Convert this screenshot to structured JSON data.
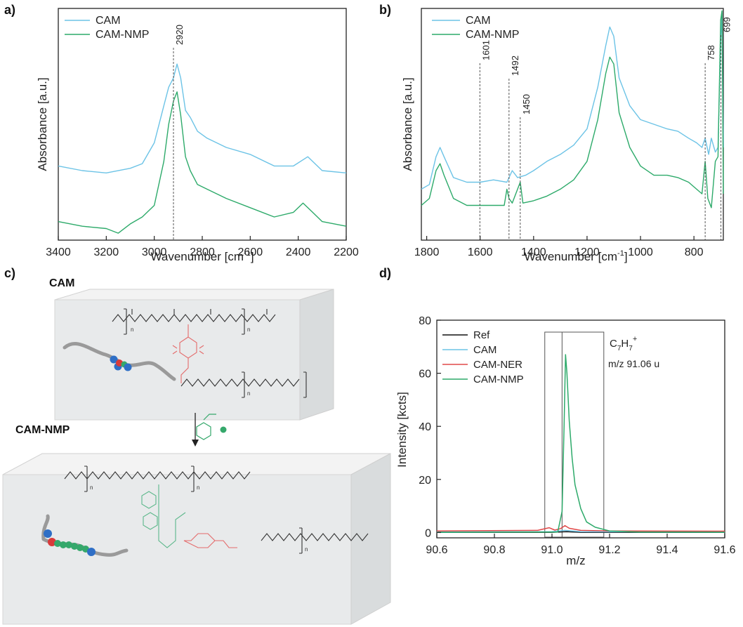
{
  "chart_data": [
    {
      "panel": "a)",
      "type": "line",
      "xlabel": "Wavenumber [cm",
      "xlabel_sup": "-1",
      "xlabel_end": "]",
      "ylabel": "Absorbance [a.u.]",
      "xlim": [
        3400,
        2200
      ],
      "x_ticks": [
        "3400",
        "3200",
        "3000",
        "2800",
        "2600",
        "2400",
        "2200"
      ],
      "annotations": [
        {
          "x": 2920,
          "label": "2920"
        }
      ],
      "series": [
        {
          "name": "CAM",
          "color": "#6cc3e6",
          "points": [
            [
              3400,
              0.32
            ],
            [
              3300,
              0.3
            ],
            [
              3200,
              0.29
            ],
            [
              3100,
              0.31
            ],
            [
              3050,
              0.33
            ],
            [
              3000,
              0.42
            ],
            [
              2960,
              0.58
            ],
            [
              2940,
              0.66
            ],
            [
              2920,
              0.7
            ],
            [
              2905,
              0.76
            ],
            [
              2890,
              0.7
            ],
            [
              2870,
              0.56
            ],
            [
              2850,
              0.53
            ],
            [
              2820,
              0.47
            ],
            [
              2780,
              0.44
            ],
            [
              2700,
              0.4
            ],
            [
              2600,
              0.37
            ],
            [
              2500,
              0.32
            ],
            [
              2420,
              0.32
            ],
            [
              2360,
              0.36
            ],
            [
              2300,
              0.3
            ],
            [
              2200,
              0.29
            ]
          ]
        },
        {
          "name": "CAM-NMP",
          "color": "#2daa6a",
          "points": [
            [
              3400,
              0.08
            ],
            [
              3300,
              0.06
            ],
            [
              3200,
              0.05
            ],
            [
              3150,
              0.03
            ],
            [
              3100,
              0.07
            ],
            [
              3050,
              0.1
            ],
            [
              3000,
              0.15
            ],
            [
              2960,
              0.34
            ],
            [
              2940,
              0.5
            ],
            [
              2920,
              0.6
            ],
            [
              2905,
              0.64
            ],
            [
              2890,
              0.54
            ],
            [
              2870,
              0.36
            ],
            [
              2850,
              0.3
            ],
            [
              2820,
              0.24
            ],
            [
              2780,
              0.22
            ],
            [
              2700,
              0.18
            ],
            [
              2600,
              0.14
            ],
            [
              2500,
              0.1
            ],
            [
              2420,
              0.12
            ],
            [
              2380,
              0.16
            ],
            [
              2340,
              0.12
            ],
            [
              2300,
              0.08
            ],
            [
              2200,
              0.06
            ]
          ]
        }
      ]
    },
    {
      "panel": "b)",
      "type": "line",
      "xlabel": "Wavenumber [cm",
      "xlabel_sup": "-1",
      "xlabel_end": "]",
      "ylabel": "Absorbance [a.u.]",
      "xlim": [
        1820,
        690
      ],
      "x_ticks": [
        "1800",
        "1600",
        "1400",
        "1200",
        "1000",
        "800"
      ],
      "annotations": [
        {
          "x": 1601,
          "label": "1601"
        },
        {
          "x": 1492,
          "label": "1492"
        },
        {
          "x": 1450,
          "label": "1450"
        },
        {
          "x": 758,
          "label": "758"
        },
        {
          "x": 699,
          "label": "699"
        }
      ],
      "series": [
        {
          "name": "CAM",
          "color": "#6cc3e6",
          "points": [
            [
              1820,
              0.22
            ],
            [
              1790,
              0.24
            ],
            [
              1765,
              0.36
            ],
            [
              1750,
              0.4
            ],
            [
              1735,
              0.36
            ],
            [
              1700,
              0.27
            ],
            [
              1650,
              0.25
            ],
            [
              1600,
              0.25
            ],
            [
              1550,
              0.26
            ],
            [
              1500,
              0.25
            ],
            [
              1480,
              0.3
            ],
            [
              1460,
              0.27
            ],
            [
              1430,
              0.28
            ],
            [
              1400,
              0.3
            ],
            [
              1350,
              0.34
            ],
            [
              1300,
              0.37
            ],
            [
              1250,
              0.41
            ],
            [
              1200,
              0.48
            ],
            [
              1160,
              0.66
            ],
            [
              1130,
              0.84
            ],
            [
              1115,
              0.92
            ],
            [
              1100,
              0.88
            ],
            [
              1080,
              0.7
            ],
            [
              1040,
              0.58
            ],
            [
              1000,
              0.52
            ],
            [
              950,
              0.5
            ],
            [
              900,
              0.48
            ],
            [
              860,
              0.47
            ],
            [
              820,
              0.44
            ],
            [
              790,
              0.42
            ],
            [
              770,
              0.4
            ],
            [
              758,
              0.44
            ],
            [
              745,
              0.37
            ],
            [
              735,
              0.44
            ],
            [
              720,
              0.38
            ],
            [
              710,
              0.4
            ],
            [
              700,
              0.86
            ],
            [
              695,
              0.98
            ],
            [
              690,
              0.4
            ]
          ]
        },
        {
          "name": "CAM-NMP",
          "color": "#2daa6a",
          "points": [
            [
              1820,
              0.15
            ],
            [
              1790,
              0.18
            ],
            [
              1765,
              0.3
            ],
            [
              1750,
              0.33
            ],
            [
              1735,
              0.28
            ],
            [
              1700,
              0.18
            ],
            [
              1650,
              0.15
            ],
            [
              1600,
              0.15
            ],
            [
              1550,
              0.15
            ],
            [
              1510,
              0.15
            ],
            [
              1500,
              0.22
            ],
            [
              1492,
              0.18
            ],
            [
              1480,
              0.16
            ],
            [
              1460,
              0.22
            ],
            [
              1450,
              0.25
            ],
            [
              1440,
              0.16
            ],
            [
              1400,
              0.17
            ],
            [
              1350,
              0.19
            ],
            [
              1300,
              0.22
            ],
            [
              1250,
              0.26
            ],
            [
              1200,
              0.34
            ],
            [
              1160,
              0.52
            ],
            [
              1130,
              0.72
            ],
            [
              1115,
              0.79
            ],
            [
              1100,
              0.76
            ],
            [
              1080,
              0.55
            ],
            [
              1040,
              0.4
            ],
            [
              1000,
              0.32
            ],
            [
              950,
              0.28
            ],
            [
              900,
              0.28
            ],
            [
              860,
              0.27
            ],
            [
              820,
              0.25
            ],
            [
              790,
              0.22
            ],
            [
              770,
              0.2
            ],
            [
              758,
              0.34
            ],
            [
              748,
              0.18
            ],
            [
              735,
              0.14
            ],
            [
              720,
              0.34
            ],
            [
              710,
              0.36
            ],
            [
              700,
              0.95
            ],
            [
              695,
              0.99
            ],
            [
              690,
              0.2
            ]
          ]
        }
      ]
    },
    {
      "panel": "d)",
      "type": "line",
      "xlabel": "m/z",
      "ylabel": "Intensity [kcts]",
      "xlim": [
        90.6,
        91.6
      ],
      "ylim": [
        -2,
        80
      ],
      "x_ticks": [
        "90.6",
        "90.8",
        "91.0",
        "91.2",
        "91.4",
        "91.6"
      ],
      "y_ticks": [
        "0",
        "20",
        "40",
        "60",
        "80"
      ],
      "annotation_main": "C",
      "annotation_sub1": "7",
      "annotation_mid": "H",
      "annotation_sub2": "7",
      "annotation_sup": "+",
      "annotation_mz": "m/z 91.06 u",
      "series": [
        {
          "name": "Ref",
          "color": "#111111",
          "points": [
            [
              90.6,
              0.1
            ],
            [
              91.0,
              0.1
            ],
            [
              91.05,
              0.3
            ],
            [
              91.1,
              0.1
            ],
            [
              91.6,
              0.1
            ]
          ]
        },
        {
          "name": "CAM",
          "color": "#6cc3e6",
          "points": [
            [
              90.6,
              0.2
            ],
            [
              91.0,
              0.3
            ],
            [
              91.045,
              0.8
            ],
            [
              91.1,
              0.3
            ],
            [
              91.6,
              0.2
            ]
          ]
        },
        {
          "name": "CAM-NER",
          "color": "#e04848",
          "points": [
            [
              90.6,
              0.6
            ],
            [
              90.95,
              0.8
            ],
            [
              90.99,
              1.8
            ],
            [
              91.01,
              0.9
            ],
            [
              91.03,
              1.5
            ],
            [
              91.045,
              2.6
            ],
            [
              91.06,
              1.6
            ],
            [
              91.1,
              0.8
            ],
            [
              91.2,
              0.6
            ],
            [
              91.6,
              0.5
            ]
          ]
        },
        {
          "name": "CAM-NMP",
          "color": "#2daa6a",
          "points": [
            [
              90.6,
              0.1
            ],
            [
              91.02,
              0.2
            ],
            [
              91.035,
              8
            ],
            [
              91.042,
              40
            ],
            [
              91.047,
              67
            ],
            [
              91.052,
              60
            ],
            [
              91.06,
              42
            ],
            [
              91.07,
              28
            ],
            [
              91.08,
              18
            ],
            [
              91.1,
              9
            ],
            [
              91.12,
              4
            ],
            [
              91.15,
              2
            ],
            [
              91.2,
              0.6
            ],
            [
              91.3,
              0.2
            ],
            [
              91.6,
              0.1
            ]
          ]
        }
      ]
    }
  ],
  "schematic": {
    "panel": "c)",
    "top_label": "CAM",
    "bottom_label": "CAM-NMP",
    "n_sub": "n"
  }
}
